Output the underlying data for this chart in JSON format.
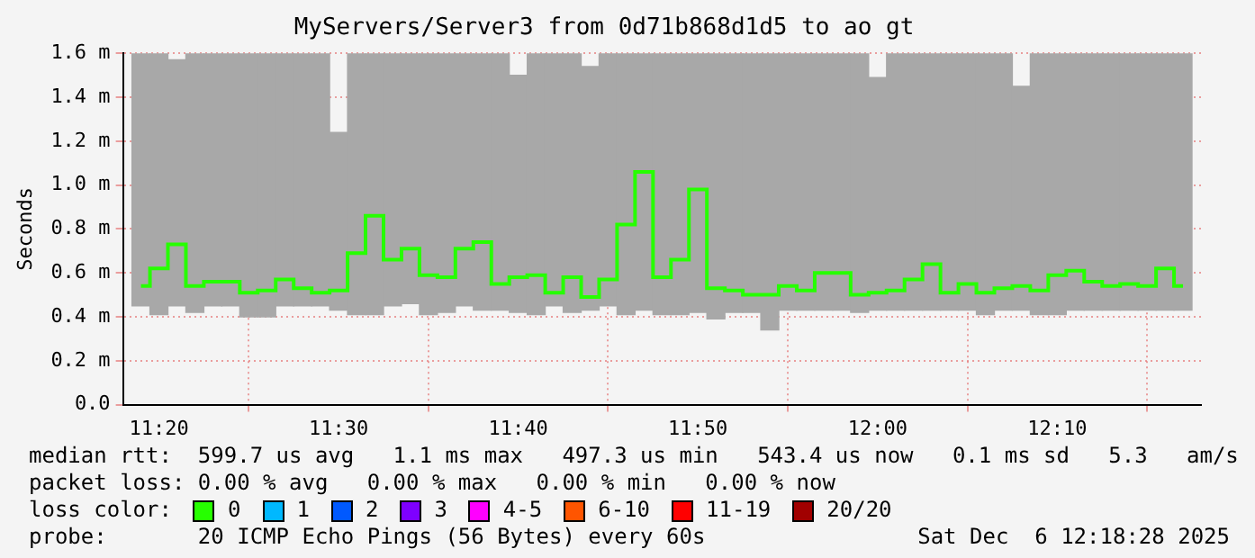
{
  "chart_data": {
    "type": "bar",
    "title": "MyServers/Server3 from 0d71b868d1d5 to ao gt",
    "ylabel": "Seconds",
    "x": [
      "2025-12-06T11:19",
      "2025-12-06T11:20",
      "2025-12-06T11:21",
      "2025-12-06T11:22",
      "2025-12-06T11:23",
      "2025-12-06T11:24",
      "2025-12-06T11:25",
      "2025-12-06T11:26",
      "2025-12-06T11:27",
      "2025-12-06T11:28",
      "2025-12-06T11:29",
      "2025-12-06T11:30",
      "2025-12-06T11:31",
      "2025-12-06T11:32",
      "2025-12-06T11:33",
      "2025-12-06T11:34",
      "2025-12-06T11:35",
      "2025-12-06T11:36",
      "2025-12-06T11:37",
      "2025-12-06T11:38",
      "2025-12-06T11:39",
      "2025-12-06T11:40",
      "2025-12-06T11:41",
      "2025-12-06T11:42",
      "2025-12-06T11:43",
      "2025-12-06T11:44",
      "2025-12-06T11:45",
      "2025-12-06T11:46",
      "2025-12-06T11:47",
      "2025-12-06T11:48",
      "2025-12-06T11:49",
      "2025-12-06T11:50",
      "2025-12-06T11:51",
      "2025-12-06T11:52",
      "2025-12-06T11:53",
      "2025-12-06T11:54",
      "2025-12-06T11:55",
      "2025-12-06T11:56",
      "2025-12-06T11:57",
      "2025-12-06T11:58",
      "2025-12-06T11:59",
      "2025-12-06T12:00",
      "2025-12-06T12:01",
      "2025-12-06T12:02",
      "2025-12-06T12:03",
      "2025-12-06T12:04",
      "2025-12-06T12:05",
      "2025-12-06T12:06",
      "2025-12-06T12:07",
      "2025-12-06T12:08",
      "2025-12-06T12:09",
      "2025-12-06T12:10",
      "2025-12-06T12:11",
      "2025-12-06T12:12",
      "2025-12-06T12:13",
      "2025-12-06T12:14",
      "2025-12-06T12:15",
      "2025-12-06T12:16",
      "2025-12-06T12:17"
    ],
    "series": [
      {
        "color": "#a8a8a8",
        "base": [
          0.45,
          0.41,
          0.45,
          0.42,
          0.45,
          0.45,
          0.4,
          0.4,
          0.45,
          0.45,
          0.45,
          0.43,
          0.41,
          0.41,
          0.45,
          0.46,
          0.41,
          0.42,
          0.45,
          0.43,
          0.43,
          0.42,
          0.41,
          0.45,
          0.42,
          0.43,
          0.45,
          0.41,
          0.43,
          0.41,
          0.41,
          0.42,
          0.39,
          0.42,
          0.42,
          0.34,
          0.43,
          0.43,
          0.43,
          0.43,
          0.42,
          0.43,
          0.43,
          0.43,
          0.43,
          0.43,
          0.43,
          0.41,
          0.43,
          0.43,
          0.41,
          0.41,
          0.43,
          0.43,
          0.43,
          0.43,
          0.43,
          0.43,
          0.43
        ],
        "values": [
          1.15,
          1.19,
          1.12,
          1.18,
          1.15,
          1.15,
          1.2,
          1.2,
          1.15,
          1.15,
          1.15,
          0.81,
          1.19,
          1.19,
          1.15,
          1.14,
          1.19,
          1.18,
          1.15,
          1.17,
          1.17,
          1.08,
          1.19,
          1.15,
          1.18,
          1.11,
          1.15,
          1.19,
          1.17,
          1.19,
          1.19,
          1.18,
          1.21,
          1.18,
          1.18,
          1.26,
          1.17,
          1.17,
          1.17,
          1.17,
          1.18,
          1.06,
          1.17,
          1.17,
          1.17,
          1.17,
          1.17,
          1.19,
          1.17,
          1.02,
          1.19,
          1.19,
          1.17,
          1.17,
          1.17,
          1.17,
          1.17,
          1.17,
          1.17
        ]
      },
      {
        "type": "step",
        "name": "0",
        "color": "#26ff00",
        "values": [
          0.54,
          0.62,
          0.73,
          0.54,
          0.56,
          0.56,
          0.51,
          0.52,
          0.57,
          0.53,
          0.51,
          0.52,
          0.69,
          0.86,
          0.66,
          0.71,
          0.59,
          0.58,
          0.71,
          0.74,
          0.55,
          0.58,
          0.59,
          0.51,
          0.58,
          0.49,
          0.57,
          0.82,
          1.06,
          0.58,
          0.66,
          0.98,
          0.53,
          0.52,
          0.5,
          0.5,
          0.54,
          0.52,
          0.6,
          0.6,
          0.5,
          0.51,
          0.52,
          0.57,
          0.64,
          0.51,
          0.55,
          0.51,
          0.53,
          0.54,
          0.52,
          0.59,
          0.61,
          0.56,
          0.54,
          0.55,
          0.54,
          0.62,
          0.54
        ]
      },
      {
        "type": "step",
        "name": "1",
        "color": "#00b8ff",
        "values": [
          null,
          null,
          null,
          null,
          null,
          null,
          null,
          null,
          null,
          null,
          null,
          null,
          null,
          null,
          null,
          null,
          null,
          null,
          null,
          null,
          null,
          null,
          null,
          null,
          null,
          null,
          null,
          null,
          null,
          null,
          null,
          null,
          null,
          null,
          null,
          null,
          null,
          null,
          null,
          null,
          null,
          null,
          null,
          null,
          null,
          null,
          null,
          null,
          null,
          null,
          null,
          null,
          null,
          null,
          null,
          null,
          null,
          null,
          null
        ]
      },
      {
        "type": "step",
        "name": "2",
        "color": "#0059ff",
        "values": [
          null,
          null,
          null,
          null,
          null,
          null,
          null,
          null,
          null,
          null,
          null,
          null,
          null,
          null,
          null,
          null,
          null,
          null,
          null,
          null,
          null,
          null,
          null,
          null,
          null,
          null,
          null,
          null,
          null,
          null,
          null,
          null,
          null,
          null,
          null,
          null,
          null,
          null,
          null,
          null,
          null,
          null,
          null,
          null,
          null,
          null,
          null,
          null,
          null,
          null,
          null,
          null,
          null,
          null,
          null,
          null,
          null,
          null,
          null
        ]
      },
      {
        "type": "step",
        "name": "3",
        "color": "#7e00ff",
        "values": [
          null,
          null,
          null,
          null,
          null,
          null,
          null,
          null,
          null,
          null,
          null,
          null,
          null,
          null,
          null,
          null,
          null,
          null,
          null,
          null,
          null,
          null,
          null,
          null,
          null,
          null,
          null,
          null,
          null,
          null,
          null,
          null,
          null,
          null,
          null,
          null,
          null,
          null,
          null,
          null,
          null,
          null,
          null,
          null,
          null,
          null,
          null,
          null,
          null,
          null,
          null,
          null,
          null,
          null,
          null,
          null,
          null,
          null,
          null
        ]
      },
      {
        "type": "step",
        "name": "4-5",
        "color": "#ff00ff",
        "values": [
          null,
          null,
          null,
          null,
          null,
          null,
          null,
          null,
          null,
          null,
          null,
          null,
          null,
          null,
          null,
          null,
          null,
          null,
          null,
          null,
          null,
          null,
          null,
          null,
          null,
          null,
          null,
          null,
          null,
          null,
          null,
          null,
          null,
          null,
          null,
          null,
          null,
          null,
          null,
          null,
          null,
          null,
          null,
          null,
          null,
          null,
          null,
          null,
          null,
          null,
          null,
          null,
          null,
          null,
          null,
          null,
          null,
          null,
          null
        ]
      },
      {
        "type": "step",
        "name": "6-10",
        "color": "#ff5500",
        "values": [
          null,
          null,
          null,
          null,
          null,
          null,
          null,
          null,
          null,
          null,
          null,
          null,
          null,
          null,
          null,
          null,
          null,
          null,
          null,
          null,
          null,
          null,
          null,
          null,
          null,
          null,
          null,
          null,
          null,
          null,
          null,
          null,
          null,
          null,
          null,
          null,
          null,
          null,
          null,
          null,
          null,
          null,
          null,
          null,
          null,
          null,
          null,
          null,
          null,
          null,
          null,
          null,
          null,
          null,
          null,
          null,
          null,
          null,
          null
        ]
      },
      {
        "type": "step",
        "name": "11-19",
        "color": "#ff0000",
        "values": [
          null,
          null,
          null,
          null,
          null,
          null,
          null,
          null,
          null,
          null,
          null,
          null,
          null,
          null,
          null,
          null,
          null,
          null,
          null,
          null,
          null,
          null,
          null,
          null,
          null,
          null,
          null,
          null,
          null,
          null,
          null,
          null,
          null,
          null,
          null,
          null,
          null,
          null,
          null,
          null,
          null,
          null,
          null,
          null,
          null,
          null,
          null,
          null,
          null,
          null,
          null,
          null,
          null,
          null,
          null,
          null,
          null,
          null,
          null
        ]
      },
      {
        "type": "step",
        "name": "20/20",
        "color": "#a10000",
        "values": [
          null,
          null,
          null,
          null,
          null,
          null,
          null,
          null,
          null,
          null,
          null,
          null,
          null,
          null,
          null,
          null,
          null,
          null,
          null,
          null,
          null,
          null,
          null,
          null,
          null,
          null,
          null,
          null,
          null,
          null,
          null,
          null,
          null,
          null,
          null,
          null,
          null,
          null,
          null,
          null,
          null,
          null,
          null,
          null,
          null,
          null,
          null,
          null,
          null,
          null,
          null,
          null,
          null,
          null,
          null,
          null,
          null,
          null,
          null
        ]
      }
    ],
    "xlim": [
      "2025-12-06T11:18",
      "2025-12-06T12:18"
    ],
    "xticks": [
      {
        "value": "2025-12-06T11:20",
        "label": "11:20"
      },
      {
        "value": "2025-12-06T11:30",
        "label": "11:30"
      },
      {
        "value": "2025-12-06T11:40",
        "label": "11:40"
      },
      {
        "value": "2025-12-06T11:50",
        "label": "11:50"
      },
      {
        "value": "2025-12-06T12:00",
        "label": "12:00"
      },
      {
        "value": "2025-12-06T12:10",
        "label": "12:10"
      }
    ],
    "ylim": [
      0,
      1.6
    ],
    "yticks": [
      {
        "value": 0,
        "label": "0.0"
      },
      {
        "value": 0.2,
        "label": "0.2 m"
      },
      {
        "value": 0.4,
        "label": "0.4 m"
      },
      {
        "value": 0.6,
        "label": "0.6 m"
      },
      {
        "value": 0.8,
        "label": "0.8 m"
      },
      {
        "value": 1.0,
        "label": "1.0 m"
      },
      {
        "value": 1.2,
        "label": "1.2 m"
      },
      {
        "value": 1.4,
        "label": "1.4 m"
      },
      {
        "value": 1.6,
        "label": "1.6 m"
      }
    ],
    "grid": true,
    "marker": "none",
    "legend": "bottom",
    "legend_title": "loss color:",
    "annotations": [
      "median rtt:  599.7 us avg   1.1 ms max   497.3 us min   543.4 us now   0.1 ms sd   5.3   am/s",
      "packet loss: 0.00 % avg   0.00 % max   0.00 % min   0.00 % now",
      "probe:       20 ICMP Echo Pings (56 Bytes) every 60s",
      "Sat Dec  6 12:18:28 2025"
    ]
  }
}
